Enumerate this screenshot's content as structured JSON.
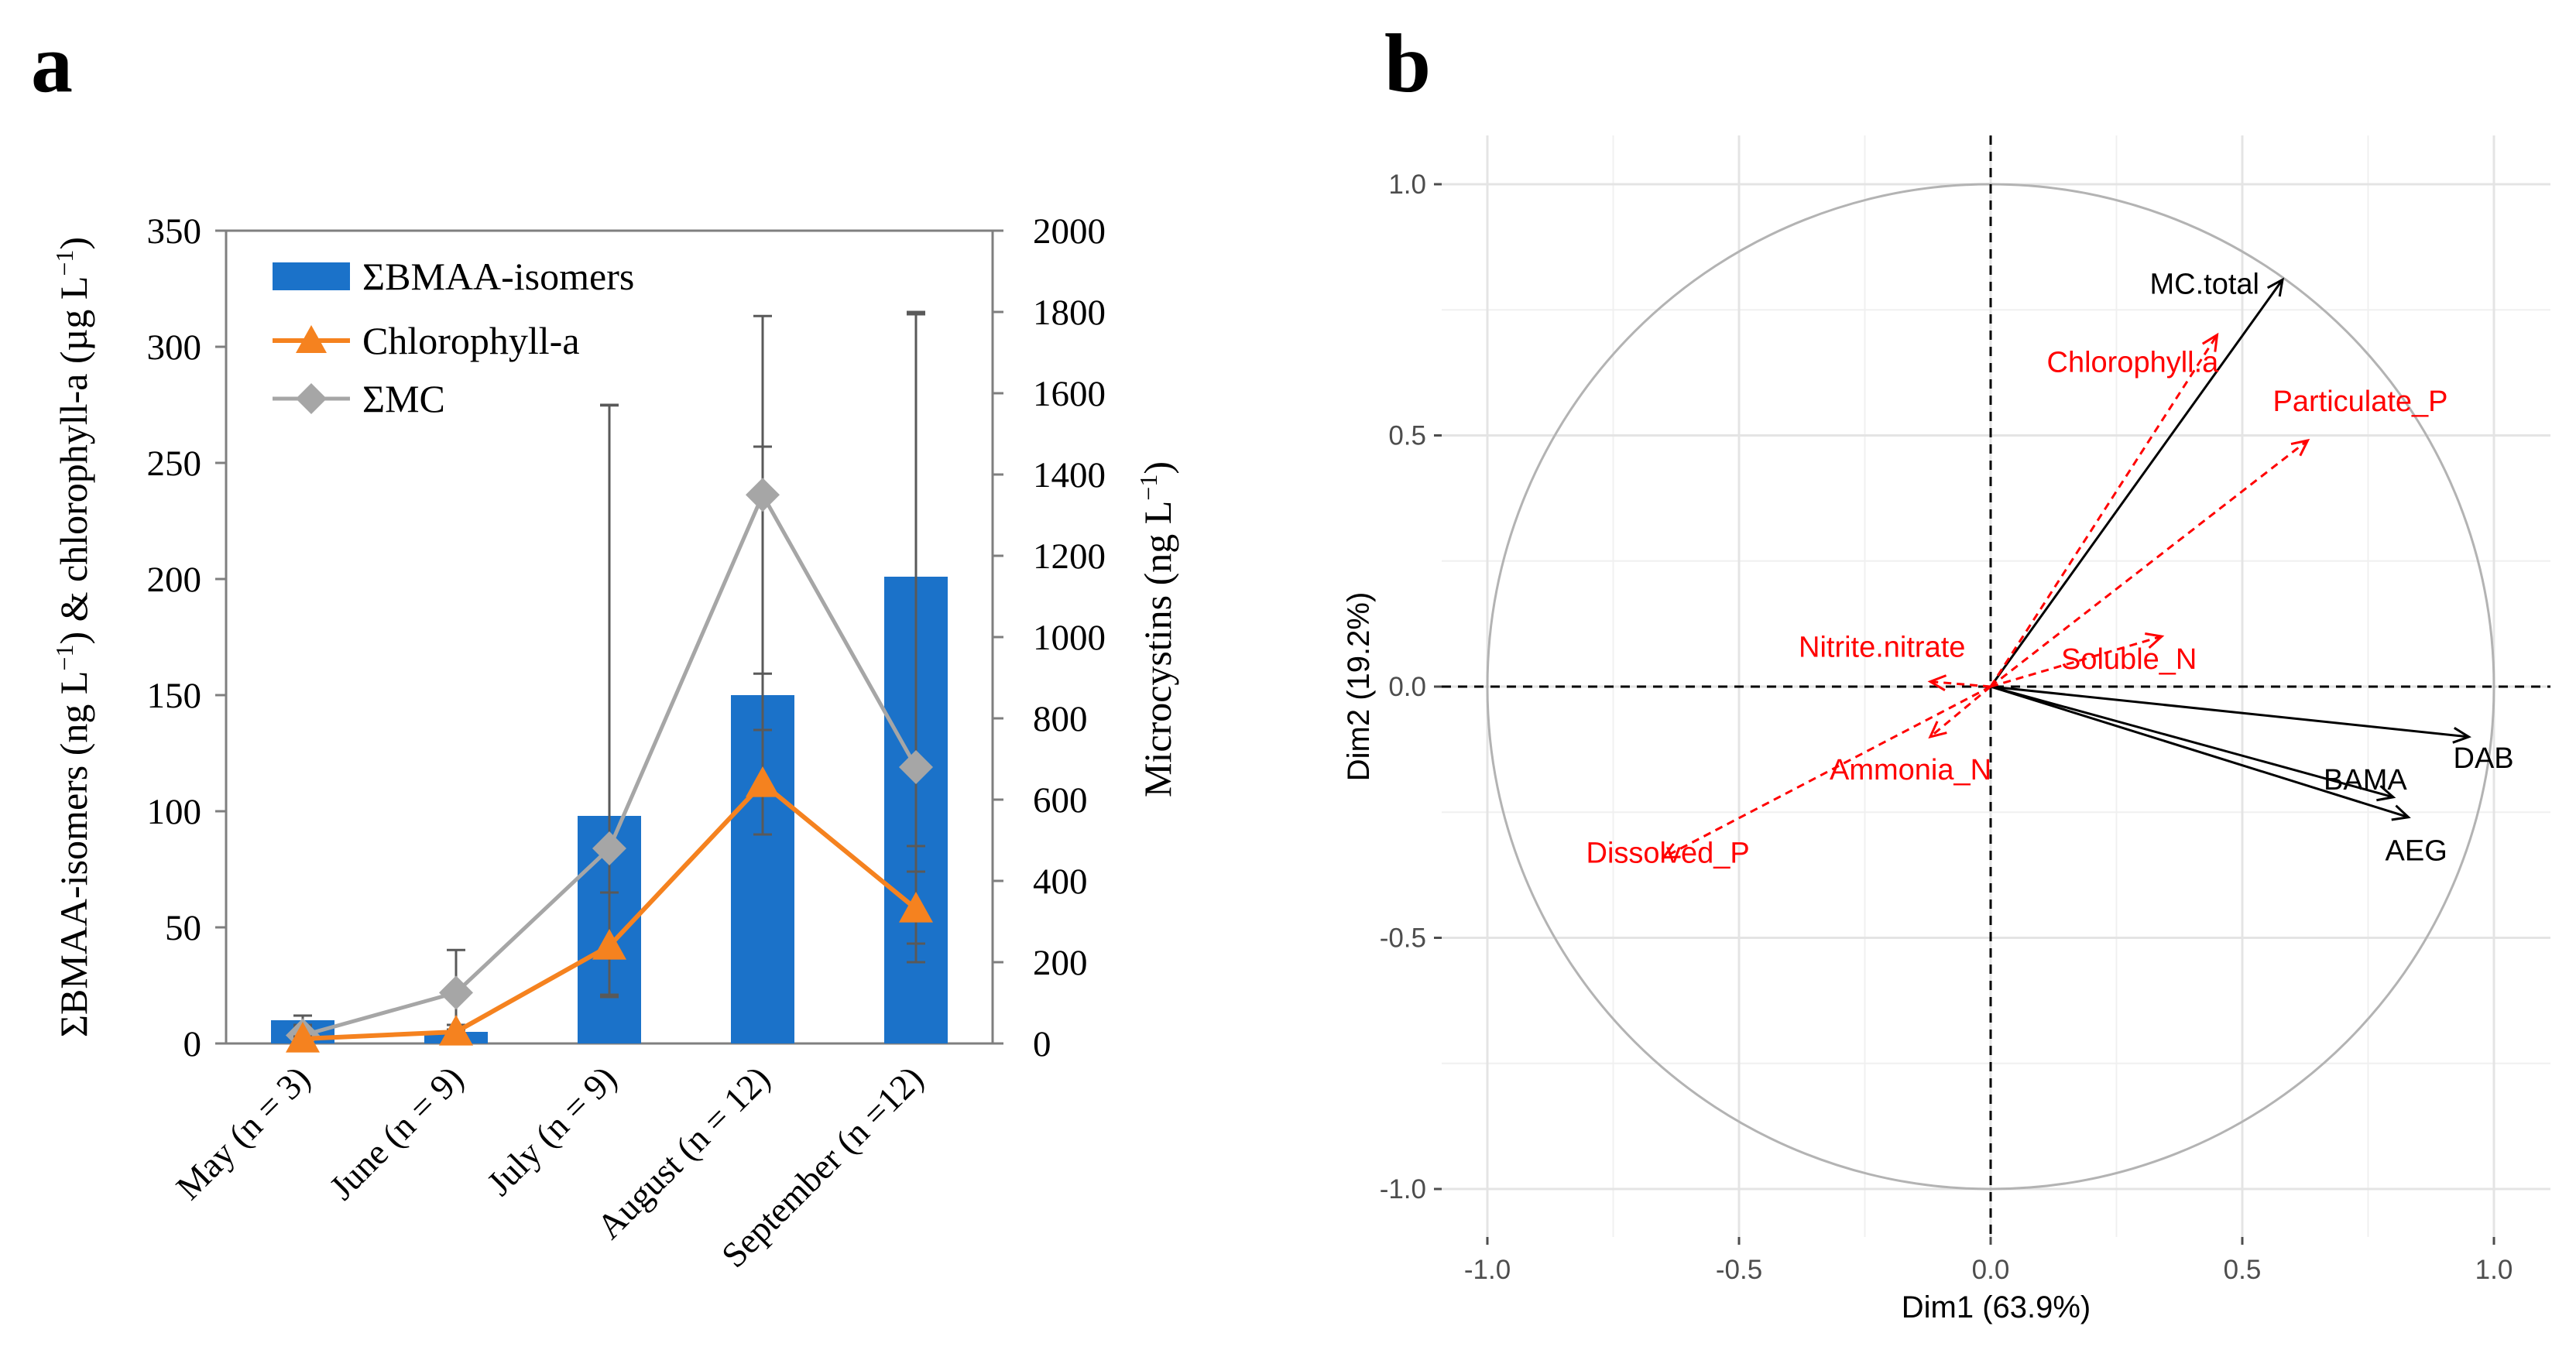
{
  "chart_data": [
    {
      "panel_label": "a",
      "type": "bar+line",
      "categories": [
        "May (n = 3)",
        "June (n = 9)",
        "July (n = 9)",
        "August (n = 12)",
        "September (n =12)"
      ],
      "ylabel": "ΣBMAA-isomers (ng L⁻¹) & chlorophyll-a (µg L⁻¹)",
      "ylabel_parts": [
        "ΣBMAA-isomers (ng L",
        "−1",
        ") & chlorophyll-a (µg L",
        "−1",
        ")"
      ],
      "y2label": "Microcystins (ng L⁻¹)",
      "y2label_parts": [
        "Microcystins (ng L",
        "−1",
        ")"
      ],
      "ylim": [
        0,
        350
      ],
      "yticks": [
        0,
        50,
        100,
        150,
        200,
        250,
        300,
        350
      ],
      "y2lim": [
        0,
        2000
      ],
      "y2ticks": [
        0,
        200,
        400,
        600,
        800,
        1000,
        1200,
        1400,
        1600,
        1800,
        2000
      ],
      "legend_position": "top-left",
      "series": [
        {
          "name": "ΣBMAA-isomers",
          "kind": "bar",
          "axis": "left",
          "color": "#1b72c9",
          "values": [
            10,
            5,
            98,
            150,
            201
          ],
          "error_upper": [
            12,
            6,
            275,
            257,
            314
          ],
          "error_lower": [
            8,
            4,
            20,
            90,
            85
          ]
        },
        {
          "name": "Chlorophyll-a",
          "kind": "line",
          "marker": "triangle",
          "axis": "left",
          "color": "#f5821f",
          "values": [
            2,
            5,
            42,
            112,
            58
          ],
          "error_upper": [
            3,
            8,
            65,
            135,
            74
          ],
          "error_lower": [
            1,
            2,
            20,
            90,
            43
          ]
        },
        {
          "name": "ΣMC",
          "kind": "line",
          "marker": "diamond",
          "axis": "right",
          "color": "#a6a6a6",
          "values": [
            20,
            125,
            480,
            1350,
            680
          ],
          "error_upper": [
            40,
            230,
            1570,
            1790,
            1800
          ],
          "error_lower": [
            5,
            20,
            120,
            910,
            200
          ]
        }
      ]
    },
    {
      "panel_label": "b",
      "type": "scatter",
      "subtype": "pca-correlation-circle",
      "xlabel": "Dim1 (63.9%)",
      "ylabel": "Dim2 (19.2%)",
      "xlim": [
        -1.0,
        1.0
      ],
      "ylim": [
        -1.0,
        1.0
      ],
      "xticks": [
        "-1.0",
        "-0.5",
        "0.0",
        "0.5",
        "1.0"
      ],
      "yticks": [
        "-1.0",
        "-0.5",
        "0.0",
        "0.5",
        "1.0"
      ],
      "grid": true,
      "active_color": "#000000",
      "supplementary_color": "#ff0000",
      "vectors": [
        {
          "name": "MC.total",
          "x": 0.58,
          "y": 0.81,
          "type": "active"
        },
        {
          "name": "DAB",
          "x": 0.95,
          "y": -0.1,
          "type": "active"
        },
        {
          "name": "BAMA",
          "x": 0.8,
          "y": -0.22,
          "type": "active"
        },
        {
          "name": "AEG",
          "x": 0.83,
          "y": -0.26,
          "type": "active"
        },
        {
          "name": "Chlorophyll.a",
          "x": 0.45,
          "y": 0.7,
          "type": "supplementary"
        },
        {
          "name": "Particulate_P",
          "x": 0.63,
          "y": 0.49,
          "type": "supplementary"
        },
        {
          "name": "Nitrite.nitrate",
          "x": -0.12,
          "y": 0.01,
          "type": "supplementary"
        },
        {
          "name": "Soluble_N",
          "x": 0.34,
          "y": 0.1,
          "type": "supplementary"
        },
        {
          "name": "Ammonia_N",
          "x": -0.12,
          "y": -0.1,
          "type": "supplementary"
        },
        {
          "name": "Dissolved_P",
          "x": -0.65,
          "y": -0.34,
          "type": "supplementary"
        }
      ]
    }
  ]
}
